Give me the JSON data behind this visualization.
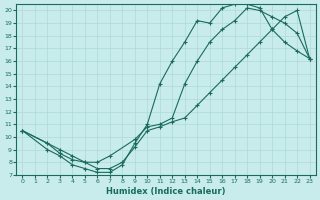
{
  "xlabel": "Humidex (Indice chaleur)",
  "bg_color": "#c8ecec",
  "line_color": "#1a6b5a",
  "grid_color": "#b0d8d8",
  "xlim": [
    -0.5,
    23.5
  ],
  "ylim": [
    7,
    20.5
  ],
  "xticks": [
    0,
    1,
    2,
    3,
    4,
    5,
    6,
    7,
    8,
    9,
    10,
    11,
    12,
    13,
    14,
    15,
    16,
    17,
    18,
    19,
    20,
    21,
    22,
    23
  ],
  "yticks": [
    7,
    8,
    9,
    10,
    11,
    12,
    13,
    14,
    15,
    16,
    17,
    18,
    19,
    20
  ],
  "line1_x": [
    0,
    2,
    3,
    4,
    5,
    6,
    7,
    8,
    9,
    10,
    11,
    12,
    13,
    14,
    15,
    16,
    17,
    18,
    19,
    20,
    21,
    22,
    23
  ],
  "line1_y": [
    10.5,
    9.0,
    8.5,
    7.8,
    7.5,
    7.2,
    7.2,
    7.8,
    9.5,
    11.0,
    14.2,
    16.0,
    17.5,
    19.2,
    19.0,
    20.2,
    20.5,
    20.5,
    20.2,
    18.5,
    17.5,
    16.8,
    16.2
  ],
  "line2_x": [
    0,
    2,
    3,
    4,
    5,
    6,
    7,
    9,
    10,
    11,
    12,
    13,
    14,
    15,
    16,
    17,
    18,
    19,
    20,
    21,
    22,
    23
  ],
  "line2_y": [
    10.5,
    9.5,
    8.7,
    8.2,
    8.0,
    8.0,
    8.5,
    9.8,
    10.8,
    11.0,
    11.5,
    14.2,
    16.0,
    17.5,
    18.5,
    19.2,
    20.2,
    20.0,
    19.5,
    19.0,
    18.2,
    16.2
  ],
  "line3_x": [
    0,
    2,
    3,
    4,
    5,
    6,
    7,
    8,
    9,
    10,
    11,
    12,
    13,
    14,
    15,
    16,
    17,
    18,
    19,
    20,
    21,
    22,
    23
  ],
  "line3_y": [
    10.5,
    9.5,
    9.0,
    8.5,
    8.0,
    7.5,
    7.5,
    8.0,
    9.2,
    10.5,
    10.8,
    11.2,
    11.5,
    12.5,
    13.5,
    14.5,
    15.5,
    16.5,
    17.5,
    18.5,
    19.5,
    20.0,
    16.2
  ]
}
